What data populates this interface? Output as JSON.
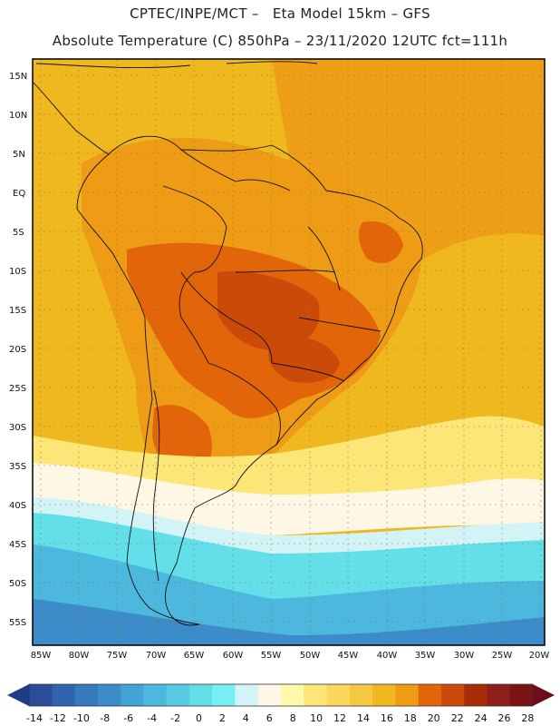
{
  "header": {
    "line1": "CPTEC/INPE/MCT –   Eta Model 15km – GFS",
    "line2": "Absolute Temperature (C) 850hPa – 23/11/2020 12UTC fct=111h"
  },
  "axes": {
    "lat_labels": [
      "15N",
      "10N",
      "5N",
      "EQ",
      "5S",
      "10S",
      "15S",
      "20S",
      "25S",
      "30S",
      "35S",
      "40S",
      "45S",
      "50S",
      "55S"
    ],
    "lon_labels": [
      "85W",
      "80W",
      "75W",
      "70W",
      "65W",
      "60W",
      "55W",
      "50W",
      "45W",
      "40W",
      "35W",
      "30W",
      "25W",
      "20W"
    ]
  },
  "colorbar": {
    "labels": [
      "-14",
      "-12",
      "-10",
      "-8",
      "-6",
      "-4",
      "-2",
      "0",
      "2",
      "4",
      "6",
      "8",
      "10",
      "12",
      "14",
      "16",
      "18",
      "20",
      "22",
      "24",
      "26",
      "28"
    ],
    "colors": [
      "#2b4c99",
      "#3064ae",
      "#3679bd",
      "#3b8cc8",
      "#42a3d5",
      "#4cb8de",
      "#57cbe4",
      "#63dfea",
      "#78f0f3",
      "#d3f4f7",
      "#fff7e6",
      "#fff8aa",
      "#fde678",
      "#fbd85b",
      "#f5c843",
      "#f0b81f",
      "#ee9b16",
      "#e3650a",
      "#cc4a09",
      "#a82c08",
      "#8c1e1c",
      "#7a1313"
    ],
    "under_color": "#1f3d86",
    "over_color": "#6e0d1c"
  },
  "map_colors": {
    "ocean_warm": "#f0b81f",
    "ocean_orange": "#ee9b16",
    "land_hot": "#e3650a",
    "land_hotter": "#cc4a09",
    "cool_light": "#fff7e6",
    "yellow": "#fde678",
    "cyan": "#63dfea",
    "sky": "#4cb8de",
    "blue": "#3b8cc8"
  }
}
